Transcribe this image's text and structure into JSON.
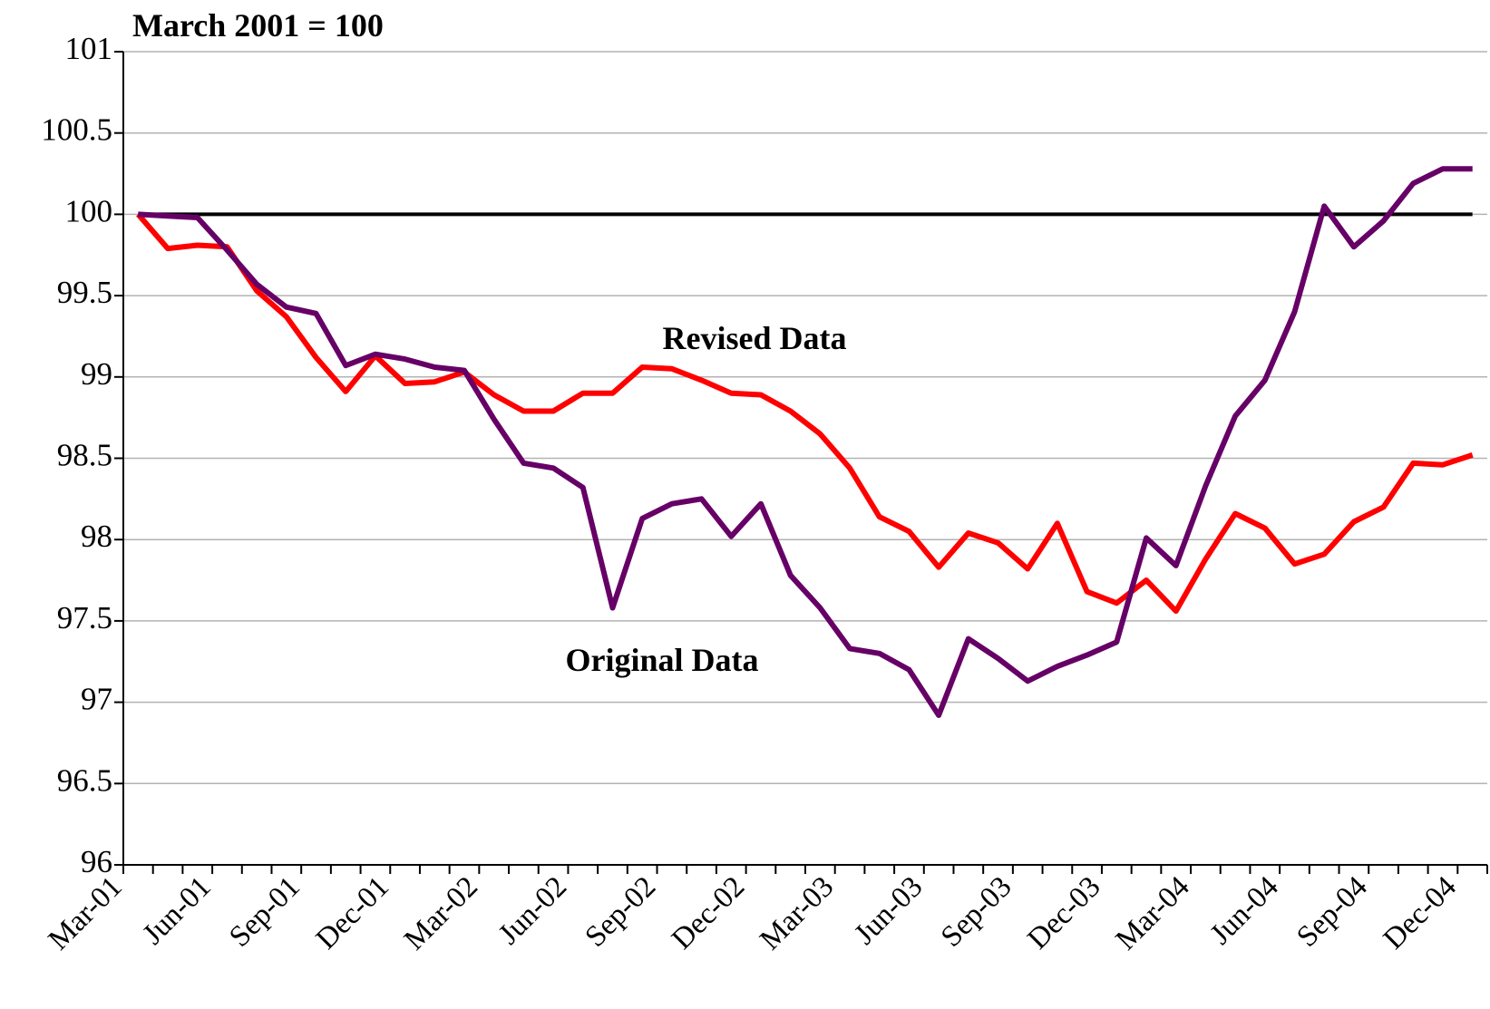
{
  "chart_data": {
    "type": "line",
    "title": "March 2001 = 100",
    "categories": [
      "Mar-01",
      null,
      null,
      "Jun-01",
      null,
      null,
      "Sep-01",
      null,
      null,
      "Dec-01",
      null,
      null,
      "Mar-02",
      null,
      null,
      "Jun-02",
      null,
      null,
      "Sep-02",
      null,
      null,
      "Dec-02",
      null,
      null,
      "Mar-03",
      null,
      null,
      "Jun-03",
      null,
      null,
      "Sep-03",
      null,
      null,
      "Dec-03",
      null,
      null,
      "Mar-04",
      null,
      null,
      "Jun-04",
      null,
      null,
      "Sep-04",
      null,
      null,
      "Dec-04"
    ],
    "series": [
      {
        "name": "Revised Data",
        "color": "#ff0000",
        "values": [
          100,
          99.79,
          99.81,
          99.8,
          99.53,
          99.37,
          99.12,
          98.91,
          99.13,
          98.96,
          98.97,
          99.03,
          98.89,
          98.79,
          98.79,
          98.9,
          98.9,
          99.06,
          99.05,
          98.98,
          98.9,
          98.89,
          98.79,
          98.65,
          98.44,
          98.14,
          98.05,
          97.83,
          98.04,
          97.98,
          97.82,
          98.1,
          97.68,
          97.61,
          97.75,
          97.56,
          97.88,
          98.16,
          98.07,
          97.85,
          97.91,
          98.11,
          98.2,
          98.47,
          98.46,
          98.52
        ]
      },
      {
        "name": "Original Data",
        "color": "#660066",
        "values": [
          100,
          99.99,
          99.98,
          99.78,
          99.57,
          99.43,
          99.39,
          99.07,
          99.14,
          99.11,
          99.06,
          99.04,
          98.74,
          98.47,
          98.44,
          98.32,
          97.58,
          98.13,
          98.22,
          98.25,
          98.02,
          98.22,
          97.78,
          97.58,
          97.33,
          97.3,
          97.2,
          96.92,
          97.39,
          97.27,
          97.13,
          97.22,
          97.29,
          97.37,
          98.01,
          97.84,
          98.33,
          98.76,
          98.98,
          99.4,
          100.05,
          99.8,
          99.96,
          100.19,
          100.28,
          100.28
        ]
      }
    ],
    "reference_line": {
      "value": 100,
      "color": "#000000"
    },
    "ylim": [
      96,
      101
    ],
    "yticks": [
      96,
      96.5,
      97,
      97.5,
      98,
      98.5,
      99,
      99.5,
      100,
      100.5,
      101
    ],
    "grid": true
  }
}
